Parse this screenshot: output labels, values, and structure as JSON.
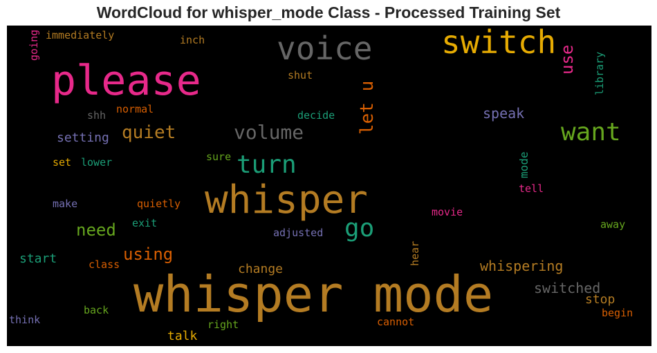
{
  "chart_data": {
    "type": "wordcloud",
    "title": "WordCloud for whisper_mode Class - Processed Training Set",
    "background": "#000000",
    "words": [
      {
        "text": "whisper mode",
        "color": "#b47c23",
        "vertical": false
      },
      {
        "text": "whisper",
        "color": "#b47c23",
        "vertical": false
      },
      {
        "text": "please",
        "color": "#e7298a",
        "vertical": false
      },
      {
        "text": "voice",
        "color": "#666666",
        "vertical": false
      },
      {
        "text": "switch",
        "color": "#e6ab02",
        "vertical": false
      },
      {
        "text": "want",
        "color": "#66a61e",
        "vertical": false
      },
      {
        "text": "turn",
        "color": "#1b9e77",
        "vertical": false
      },
      {
        "text": "go",
        "color": "#1b9e77",
        "vertical": false
      },
      {
        "text": "volume",
        "color": "#666666",
        "vertical": false
      },
      {
        "text": "quiet",
        "color": "#b47c23",
        "vertical": false
      },
      {
        "text": "let u",
        "color": "#d95f02",
        "vertical": true
      },
      {
        "text": "use",
        "color": "#e7298a",
        "vertical": true
      },
      {
        "text": "need",
        "color": "#66a61e",
        "vertical": false
      },
      {
        "text": "using",
        "color": "#d95f02",
        "vertical": false
      },
      {
        "text": "setting",
        "color": "#7570b3",
        "vertical": false
      },
      {
        "text": "speak",
        "color": "#7570b3",
        "vertical": false
      },
      {
        "text": "whispering",
        "color": "#b47c23",
        "vertical": false
      },
      {
        "text": "switched",
        "color": "#666666",
        "vertical": false
      },
      {
        "text": "stop",
        "color": "#b47c23",
        "vertical": false
      },
      {
        "text": "change",
        "color": "#b47c23",
        "vertical": false
      },
      {
        "text": "start",
        "color": "#1b9e77",
        "vertical": false
      },
      {
        "text": "talk",
        "color": "#e6ab02",
        "vertical": false
      },
      {
        "text": "mode",
        "color": "#1b9e77",
        "vertical": true
      },
      {
        "text": "library",
        "color": "#1b9e77",
        "vertical": true
      },
      {
        "text": "immediately",
        "color": "#b47c23",
        "vertical": false
      },
      {
        "text": "inch",
        "color": "#b47c23",
        "vertical": false
      },
      {
        "text": "going",
        "color": "#e7298a",
        "vertical": true
      },
      {
        "text": "shut",
        "color": "#b47c23",
        "vertical": false
      },
      {
        "text": "shh",
        "color": "#666666",
        "vertical": false
      },
      {
        "text": "normal",
        "color": "#d95f02",
        "vertical": false
      },
      {
        "text": "decide",
        "color": "#1b9e77",
        "vertical": false
      },
      {
        "text": "set",
        "color": "#e6ab02",
        "vertical": false
      },
      {
        "text": "lower",
        "color": "#1b9e77",
        "vertical": false
      },
      {
        "text": "sure",
        "color": "#66a61e",
        "vertical": false
      },
      {
        "text": "tell",
        "color": "#e7298a",
        "vertical": false
      },
      {
        "text": "make",
        "color": "#7570b3",
        "vertical": false
      },
      {
        "text": "quietly",
        "color": "#d95f02",
        "vertical": false
      },
      {
        "text": "exit",
        "color": "#1b9e77",
        "vertical": false
      },
      {
        "text": "adjusted",
        "color": "#7570b3",
        "vertical": false
      },
      {
        "text": "movie",
        "color": "#e7298a",
        "vertical": false
      },
      {
        "text": "away",
        "color": "#66a61e",
        "vertical": false
      },
      {
        "text": "class",
        "color": "#d95f02",
        "vertical": false
      },
      {
        "text": "hear",
        "color": "#b47c23",
        "vertical": true
      },
      {
        "text": "back",
        "color": "#66a61e",
        "vertical": false
      },
      {
        "text": "think",
        "color": "#7570b3",
        "vertical": false
      },
      {
        "text": "right",
        "color": "#66a61e",
        "vertical": false
      },
      {
        "text": "cannot",
        "color": "#d95f02",
        "vertical": false
      },
      {
        "text": "begin",
        "color": "#d95f02",
        "vertical": false
      }
    ]
  }
}
